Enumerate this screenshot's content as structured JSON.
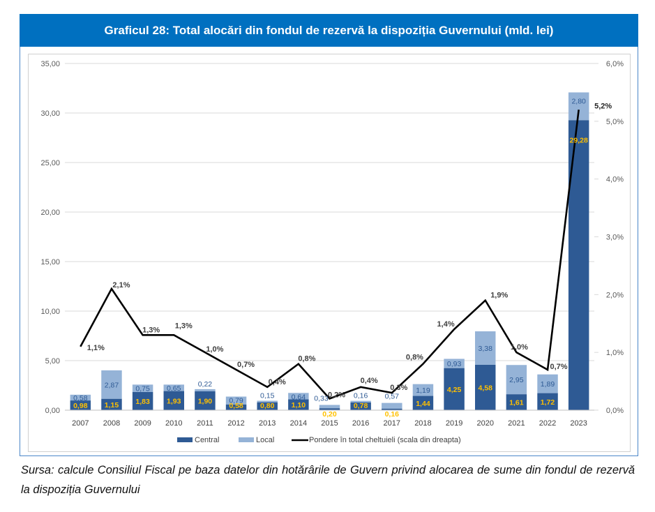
{
  "title": "Graficul 28: Total alocări din fondul de rezervă la dispoziția Guvernului (mld. lei)",
  "source_text": "Sursa: calcule Consiliul Fiscal pe baza datelor din hotărârile de Guvern privind alocarea de sume din fondul de rezervă la dispoziția Guvernului",
  "colors": {
    "title_bg": "#0070C0",
    "central": "#2E5A94",
    "local": "#95B3D7",
    "line": "#000000",
    "central_label": "#FFC000",
    "local_label": "#2E5A94",
    "pct_label": "#404040"
  },
  "chart_data": {
    "type": "bar",
    "stacked": true,
    "title": "Graficul 28: Total alocări din fondul de rezervă la dispoziția Guvernului (mld. lei)",
    "xlabel": "",
    "ylabel": "",
    "categories": [
      "2007",
      "2008",
      "2009",
      "2010",
      "2011",
      "2012",
      "2013",
      "2014",
      "2015",
      "2016",
      "2017",
      "2018",
      "2019",
      "2020",
      "2021",
      "2022",
      "2023"
    ],
    "series": [
      {
        "name": "Central",
        "type": "bar",
        "axis": "left",
        "values": [
          0.98,
          1.15,
          1.83,
          1.93,
          1.9,
          0.58,
          0.8,
          1.1,
          0.2,
          0.78,
          0.16,
          1.44,
          4.25,
          4.58,
          1.61,
          1.72,
          29.28
        ],
        "labels": [
          "0,98",
          "1,15",
          "1,83",
          "1,93",
          "1,90",
          "0,58",
          "0,80",
          "1,10",
          "0,20",
          "0,78",
          "0,16",
          "1,44",
          "4,25",
          "4,58",
          "1,61",
          "1,72",
          "29,28"
        ]
      },
      {
        "name": "Local",
        "type": "bar",
        "axis": "left",
        "values": [
          0.58,
          2.87,
          0.75,
          0.65,
          0.22,
          0.79,
          0.15,
          0.64,
          0.33,
          0.16,
          0.57,
          1.19,
          0.93,
          3.38,
          2.95,
          1.89,
          2.8
        ],
        "labels": [
          "0,58",
          "2,87",
          "0,75",
          "0,65",
          "0,22",
          "0,79",
          "0,15",
          "0,64",
          "0,33",
          "0,16",
          "0,57",
          "1,19",
          "0,93",
          "3,38",
          "2,95",
          "1,89",
          "2,80"
        ]
      },
      {
        "name": "Pondere în total cheltuieli (scala din dreapta)",
        "type": "line",
        "axis": "right",
        "values": [
          1.1,
          2.1,
          1.3,
          1.3,
          1.0,
          0.7,
          0.4,
          0.8,
          0.2,
          0.4,
          0.3,
          0.8,
          1.4,
          1.9,
          1.0,
          0.7,
          5.2
        ],
        "labels": [
          "1,1%",
          "2,1%",
          "1,3%",
          "1,3%",
          "1,0%",
          "0,7%",
          "0,4%",
          "0,8%",
          "0,2%",
          "0,4%",
          "0,3%",
          "0,8%",
          "1,4%",
          "1,9%",
          "1,0%",
          "0,7%",
          "5,2%"
        ]
      }
    ],
    "y_left": {
      "range": [
        0,
        35
      ],
      "ticks": [
        "0,00",
        "5,00",
        "10,00",
        "15,00",
        "20,00",
        "25,00",
        "30,00",
        "35,00"
      ],
      "tick_values": [
        0,
        5,
        10,
        15,
        20,
        25,
        30,
        35
      ]
    },
    "y_right": {
      "range": [
        0,
        6
      ],
      "ticks": [
        "0,0%",
        "1,0%",
        "2,0%",
        "3,0%",
        "4,0%",
        "5,0%",
        "6,0%"
      ],
      "tick_values": [
        0,
        1,
        2,
        3,
        4,
        5,
        6
      ]
    },
    "grid": true,
    "legend": {
      "position": "bottom",
      "entries": [
        "Central",
        "Local",
        "Pondere în total cheltuieli (scala din dreapta)"
      ]
    }
  }
}
